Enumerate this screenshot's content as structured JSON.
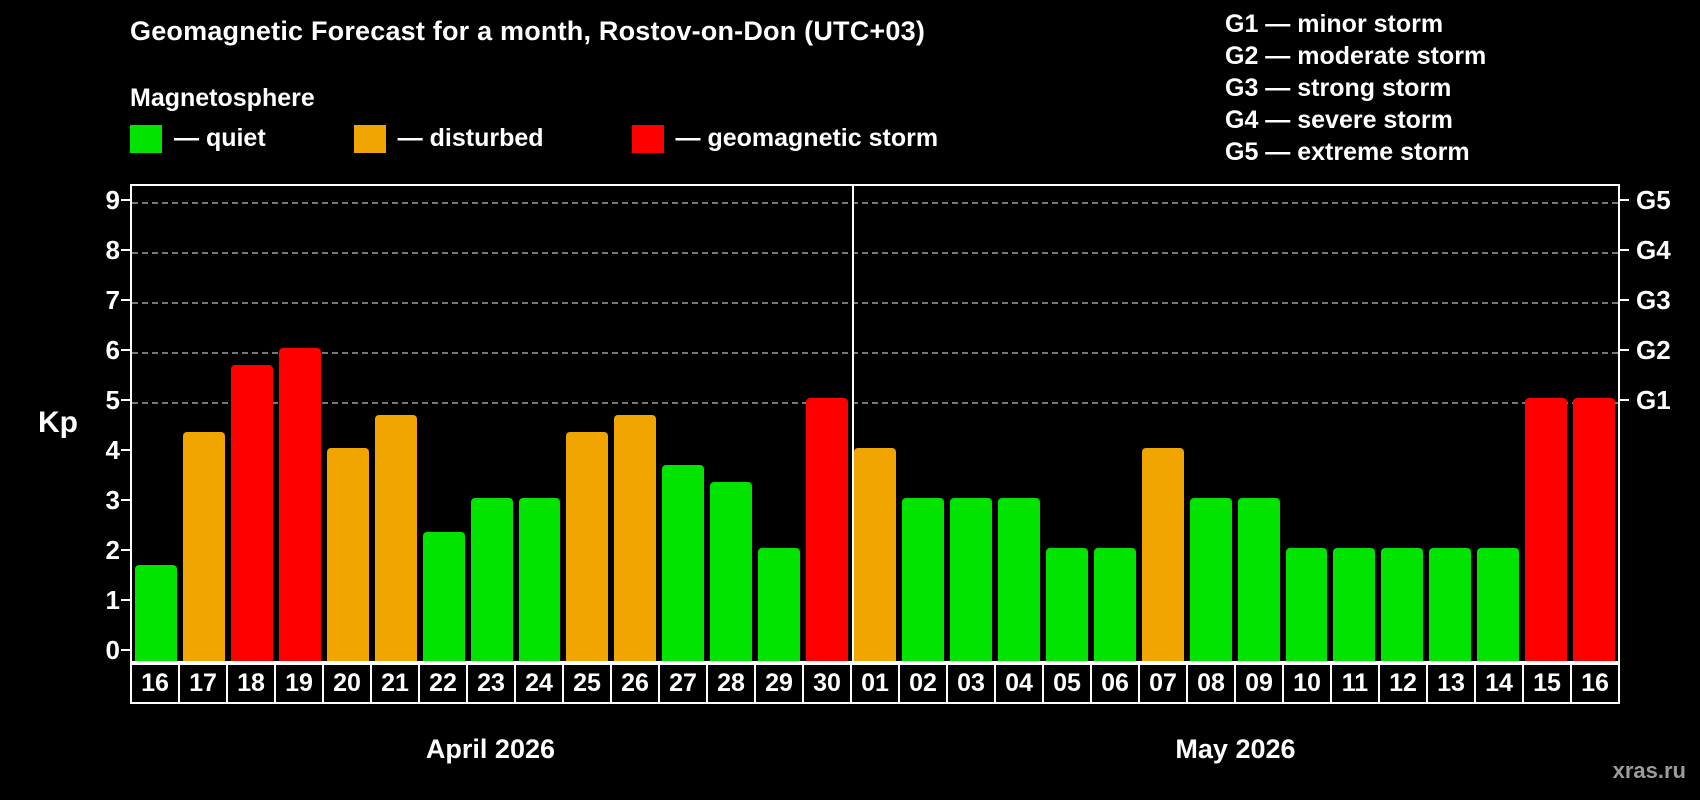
{
  "page": {
    "title": "Geomagnetic Forecast for a month, Rostov-on-Don (UTC+03)",
    "subtitle": "Magnetosphere",
    "watermark": "xras.ru"
  },
  "legend": {
    "items": [
      {
        "key": "quiet",
        "label": "— quiet",
        "color": "#00e400"
      },
      {
        "key": "disturbed",
        "label": "— disturbed",
        "color": "#f0a500"
      },
      {
        "key": "storm",
        "label": "— geomagnetic storm",
        "color": "#ff0000"
      }
    ]
  },
  "g_legend": [
    "G1 — minor storm",
    "G2 — moderate storm",
    "G3 — strong storm",
    "G4 — severe storm",
    "G5 — extreme storm"
  ],
  "chart_data": {
    "type": "bar",
    "title": "Geomagnetic Forecast for a month, Rostov-on-Don (UTC+03)",
    "ylabel": "Kp",
    "ylim": [
      0,
      9
    ],
    "yticks": [
      0,
      1,
      2,
      3,
      4,
      5,
      6,
      7,
      8,
      9
    ],
    "gridlines": [
      5,
      6,
      7,
      8,
      9
    ],
    "right_axis": [
      {
        "label": "G1",
        "value": 5
      },
      {
        "label": "G2",
        "value": 6
      },
      {
        "label": "G3",
        "value": 7
      },
      {
        "label": "G4",
        "value": 8
      },
      {
        "label": "G5",
        "value": 9
      }
    ],
    "colors": {
      "quiet": "#00e400",
      "disturbed": "#f0a500",
      "storm": "#ff0000"
    },
    "groups": [
      {
        "label": "April 2026",
        "days": [
          "16",
          "17",
          "18",
          "19",
          "20",
          "21",
          "22",
          "23",
          "24",
          "25",
          "26",
          "27",
          "28",
          "29",
          "30"
        ],
        "values": [
          1.67,
          4.33,
          5.67,
          6,
          4,
          4.67,
          2.33,
          3,
          3,
          4.33,
          4.67,
          3.67,
          3.33,
          2,
          5
        ],
        "status": [
          "quiet",
          "disturbed",
          "storm",
          "storm",
          "disturbed",
          "disturbed",
          "quiet",
          "quiet",
          "quiet",
          "disturbed",
          "disturbed",
          "quiet",
          "quiet",
          "quiet",
          "storm"
        ]
      },
      {
        "label": "May 2026",
        "days": [
          "01",
          "02",
          "03",
          "04",
          "05",
          "06",
          "07",
          "08",
          "09",
          "10",
          "11",
          "12",
          "13",
          "14",
          "15",
          "16"
        ],
        "values": [
          4,
          3,
          3,
          3,
          2,
          2,
          4,
          3,
          3,
          2,
          2,
          2,
          2,
          2,
          5,
          5
        ],
        "status": [
          "disturbed",
          "quiet",
          "quiet",
          "quiet",
          "quiet",
          "quiet",
          "disturbed",
          "quiet",
          "quiet",
          "quiet",
          "quiet",
          "quiet",
          "quiet",
          "quiet",
          "storm",
          "storm"
        ]
      }
    ]
  }
}
